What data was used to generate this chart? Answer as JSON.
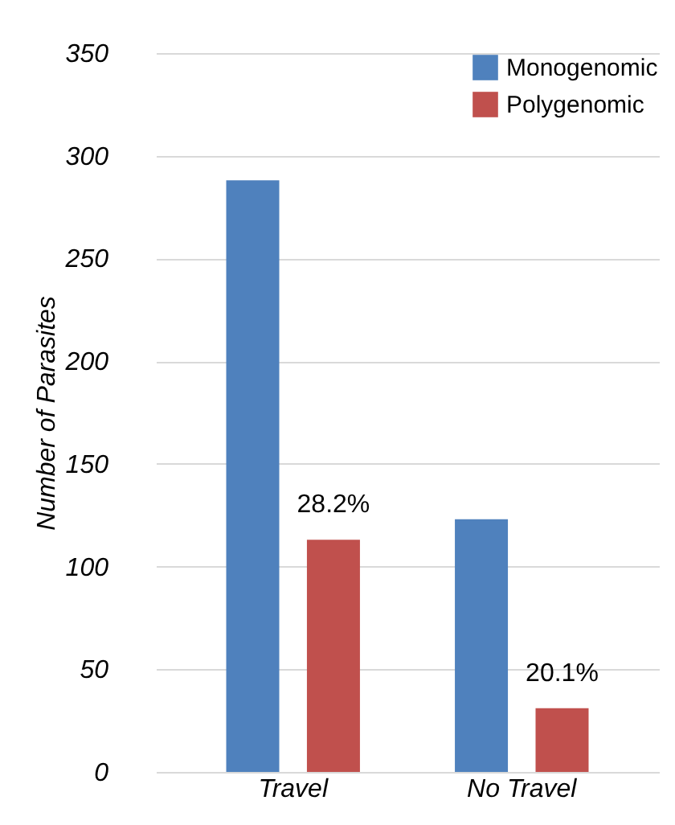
{
  "chart_data": {
    "type": "bar",
    "ylabel": "Number of Parasites",
    "categories": [
      "Travel",
      "No Travel"
    ],
    "series": [
      {
        "name": "Monogenomic",
        "color": "#4f81bd",
        "values": [
          288,
          123
        ]
      },
      {
        "name": "Polygenomic",
        "color": "#c0504d",
        "values": [
          113,
          31
        ]
      }
    ],
    "ylim": [
      0,
      350
    ],
    "yticks": [
      0,
      50,
      100,
      150,
      200,
      250,
      300,
      350
    ],
    "grid": "y",
    "legend": "top right",
    "annotations": [
      "28.2%",
      "20.1%"
    ]
  }
}
